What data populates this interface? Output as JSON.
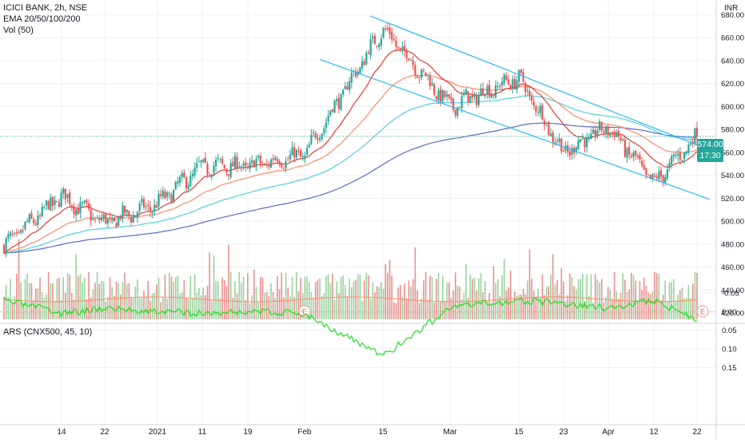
{
  "legend": {
    "symbol": "ICICI BANK, 2h, NSE",
    "ema": "EMA 20/50/100/200",
    "volume": "Vol (50)",
    "ars": "ARS (CNX500, 45, 10)",
    "currency": "INR"
  },
  "price_badge": {
    "price": "574.00",
    "countdown": "17:30"
  },
  "earnings_marker": "E",
  "colors": {
    "up": "#26a69a",
    "down": "#ef5350",
    "vol_up": "#81c784",
    "vol_down": "#e57373",
    "ema20": "#e53935",
    "ema50": "#ff8a65",
    "ema100": "#4dd0e1",
    "ema200": "#5c6bc0",
    "channel": "#29b6f6",
    "ars": "#22dd22",
    "last_price": "#26a69a"
  },
  "chart_data": [
    {
      "type": "candlestick",
      "title": "ICICI BANK, 2h, NSE",
      "y_ticks": [
        "680.00",
        "660.00",
        "640.00",
        "620.00",
        "600.00",
        "580.00",
        "560.00",
        "540.00",
        "520.00",
        "500.00",
        "480.00",
        "460.00",
        "440.00",
        "420.00"
      ],
      "ylim": [
        415,
        688
      ],
      "x_ticks": [
        "14",
        "22",
        "2021",
        "11",
        "19",
        "Feb",
        "15",
        "Mar",
        "15",
        "23",
        "Apr",
        "12",
        "22"
      ],
      "last_price": 574,
      "price_path": {
        "x": [
          "14",
          "22",
          "2021",
          "11",
          "19",
          "Feb",
          "15",
          "Mar",
          "15",
          "23",
          "Apr",
          "12",
          "22"
        ],
        "close": [
          522,
          498,
          515,
          548,
          548,
          558,
          668,
          600,
          625,
          560,
          582,
          533,
          574
        ],
        "start": 478,
        "bars": 328
      },
      "indicators": [
        "EMA 20",
        "EMA 50",
        "EMA 100",
        "EMA 200"
      ],
      "channel": {
        "upper": [
          [
            463,
            679
          ],
          [
            888,
            562
          ]
        ],
        "lower": [
          [
            400,
            641
          ],
          [
            888,
            519
          ]
        ]
      },
      "earnings_events": 2,
      "grid": true,
      "axis_position": "right"
    },
    {
      "type": "bar",
      "title": "Vol (50)",
      "series": [
        {
          "values": "one volume bar per price candle, colored by candle direction"
        }
      ]
    },
    {
      "type": "line",
      "title": "ARS (CNX500, 45, 10)",
      "y_ticks": [
        "0.15",
        "0.10",
        "0.05",
        "0.00",
        "-0.05"
      ],
      "ylim": [
        -0.08,
        0.16
      ],
      "zero_line": 0.0,
      "path": {
        "x": [
          "14",
          "22",
          "2021",
          "11",
          "19",
          "Feb",
          "15",
          "Mar",
          "15",
          "23",
          "Apr",
          "12",
          "22"
        ],
        "values": [
          0.005,
          -0.01,
          0.0,
          0.005,
          0.0,
          0.005,
          0.12,
          -0.01,
          -0.03,
          -0.02,
          -0.01,
          -0.03,
          0.02
        ],
        "start": -0.03
      }
    }
  ]
}
